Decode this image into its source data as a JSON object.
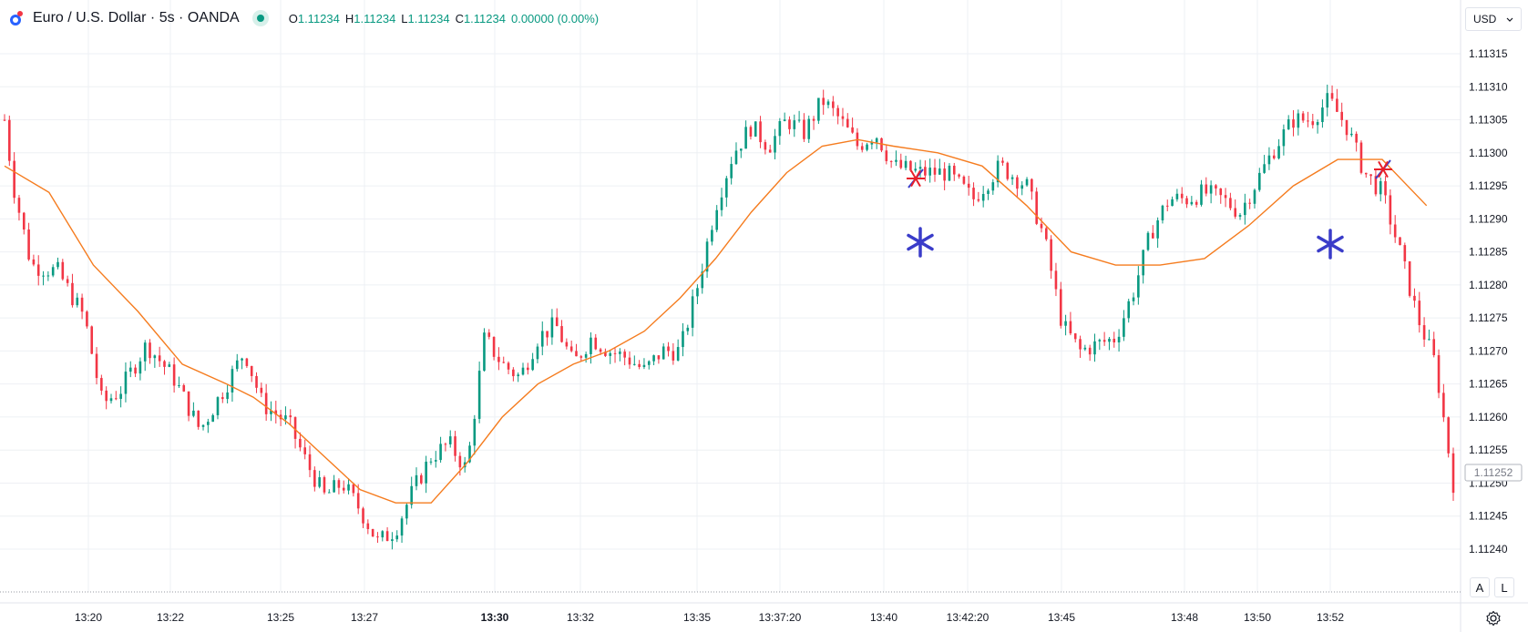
{
  "header": {
    "symbol": "Euro / U.S. Dollar · 5s · OANDA",
    "ohlc": [
      {
        "key": "O",
        "value": "1.11234"
      },
      {
        "key": "H",
        "value": "1.11234"
      },
      {
        "key": "L",
        "value": "1.11234"
      },
      {
        "key": "C",
        "value": "1.11234"
      }
    ],
    "change": "0.00000 (0.00%)"
  },
  "toolbar": {
    "currency": "USD",
    "auto_scale": "A",
    "log_scale": "L"
  },
  "current_price_label": "1.11252",
  "colors": {
    "up": "#089981",
    "down": "#f23645",
    "ma": "#f57c1f",
    "grid": "#eef0f4",
    "marker_blue": "#3a3cc9",
    "marker_red": "#e8202a"
  },
  "icons": [
    "logo-icon",
    "live-status-icon",
    "chevron-down-icon",
    "settings-icon"
  ],
  "chart_data": {
    "type": "candlestick",
    "interval": "5s",
    "y_ticks": [
      "1.11315",
      "1.11310",
      "1.11305",
      "1.11300",
      "1.11295",
      "1.11290",
      "1.11285",
      "1.11280",
      "1.11275",
      "1.11270",
      "1.11265",
      "1.11260",
      "1.11255",
      "1.11250",
      "1.11245",
      "1.11240"
    ],
    "x_ticks": [
      {
        "label": "13:20",
        "bold": false
      },
      {
        "label": "13:22",
        "bold": false
      },
      {
        "label": "13:25",
        "bold": false
      },
      {
        "label": "13:27",
        "bold": false
      },
      {
        "label": "13:30",
        "bold": true
      },
      {
        "label": "13:32",
        "bold": false
      },
      {
        "label": "13:35",
        "bold": false
      },
      {
        "label": "13:37:20",
        "bold": false
      },
      {
        "label": "13:40",
        "bold": false
      },
      {
        "label": "13:42:20",
        "bold": false
      },
      {
        "label": "13:45",
        "bold": false
      },
      {
        "label": "13:48",
        "bold": false
      },
      {
        "label": "13:50",
        "bold": false
      },
      {
        "label": "13:52",
        "bold": false
      }
    ],
    "price_path": [
      [
        0.0,
        1.11305
      ],
      [
        0.01,
        1.11295
      ],
      [
        0.03,
        1.11283
      ],
      [
        0.06,
        1.11282
      ],
      [
        0.09,
        1.11275
      ],
      [
        0.11,
        1.11262
      ],
      [
        0.13,
        1.11264
      ],
      [
        0.16,
        1.11271
      ],
      [
        0.19,
        1.11266
      ],
      [
        0.22,
        1.11258
      ],
      [
        0.25,
        1.11265
      ],
      [
        0.27,
        1.1127
      ],
      [
        0.29,
        1.11262
      ],
      [
        0.32,
        1.11259
      ],
      [
        0.34,
        1.11253
      ],
      [
        0.36,
        1.11248
      ],
      [
        0.38,
        1.1125
      ],
      [
        0.4,
        1.11246
      ],
      [
        0.42,
        1.11241
      ],
      [
        0.44,
        1.11243
      ],
      [
        0.46,
        1.11249
      ],
      [
        0.48,
        1.11254
      ],
      [
        0.5,
        1.11256
      ],
      [
        0.52,
        1.11252
      ],
      [
        0.54,
        1.11272
      ],
      [
        0.56,
        1.11268
      ],
      [
        0.58,
        1.11266
      ],
      [
        0.6,
        1.11272
      ],
      [
        0.62,
        1.11274
      ],
      [
        0.64,
        1.11268
      ],
      [
        0.66,
        1.11272
      ],
      [
        0.68,
        1.1127
      ],
      [
        0.7,
        1.11269
      ],
      [
        0.72,
        1.11267
      ],
      [
        0.74,
        1.1127
      ],
      [
        0.76,
        1.1127
      ],
      [
        0.78,
        1.1128
      ],
      [
        0.8,
        1.11292
      ],
      [
        0.82,
        1.113
      ],
      [
        0.84,
        1.11304
      ],
      [
        0.86,
        1.11301
      ],
      [
        0.88,
        1.11305
      ],
      [
        0.9,
        1.11303
      ],
      [
        0.92,
        1.11308
      ],
      [
        0.94,
        1.11305
      ],
      [
        0.96,
        1.11301
      ],
      [
        0.98,
        1.11303
      ],
      [
        1.0,
        1.11298
      ],
      [
        1.03,
        1.11297
      ],
      [
        1.06,
        1.11297
      ],
      [
        1.09,
        1.11293
      ],
      [
        1.12,
        1.11298
      ],
      [
        1.15,
        1.11295
      ],
      [
        1.17,
        1.11287
      ],
      [
        1.19,
        1.11274
      ],
      [
        1.21,
        1.1127
      ],
      [
        1.23,
        1.11271
      ],
      [
        1.25,
        1.11272
      ],
      [
        1.27,
        1.11279
      ],
      [
        1.29,
        1.11288
      ],
      [
        1.31,
        1.11293
      ],
      [
        1.33,
        1.11293
      ],
      [
        1.35,
        1.11294
      ],
      [
        1.37,
        1.11293
      ],
      [
        1.39,
        1.11291
      ],
      [
        1.41,
        1.11296
      ],
      [
        1.43,
        1.11301
      ],
      [
        1.45,
        1.11305
      ],
      [
        1.47,
        1.11305
      ],
      [
        1.49,
        1.11308
      ],
      [
        1.51,
        1.11304
      ],
      [
        1.53,
        1.11297
      ],
      [
        1.55,
        1.11294
      ],
      [
        1.57,
        1.11285
      ],
      [
        1.59,
        1.11275
      ],
      [
        1.61,
        1.11268
      ],
      [
        1.62,
        1.11259
      ],
      [
        1.63,
        1.1125
      ]
    ],
    "ma_path": [
      [
        0.0,
        1.11298
      ],
      [
        0.05,
        1.11294
      ],
      [
        0.1,
        1.11283
      ],
      [
        0.15,
        1.11276
      ],
      [
        0.2,
        1.11268
      ],
      [
        0.25,
        1.11265
      ],
      [
        0.28,
        1.11263
      ],
      [
        0.32,
        1.11259
      ],
      [
        0.36,
        1.11254
      ],
      [
        0.4,
        1.11249
      ],
      [
        0.44,
        1.11247
      ],
      [
        0.48,
        1.11247
      ],
      [
        0.52,
        1.11253
      ],
      [
        0.56,
        1.1126
      ],
      [
        0.6,
        1.11265
      ],
      [
        0.64,
        1.11268
      ],
      [
        0.68,
        1.1127
      ],
      [
        0.72,
        1.11273
      ],
      [
        0.76,
        1.11278
      ],
      [
        0.8,
        1.11284
      ],
      [
        0.84,
        1.11291
      ],
      [
        0.88,
        1.11297
      ],
      [
        0.92,
        1.11301
      ],
      [
        0.96,
        1.11302
      ],
      [
        1.0,
        1.11301
      ],
      [
        1.05,
        1.113
      ],
      [
        1.1,
        1.11298
      ],
      [
        1.15,
        1.11292
      ],
      [
        1.2,
        1.11285
      ],
      [
        1.25,
        1.11283
      ],
      [
        1.3,
        1.11283
      ],
      [
        1.35,
        1.11284
      ],
      [
        1.4,
        1.11289
      ],
      [
        1.45,
        1.11295
      ],
      [
        1.5,
        1.11299
      ],
      [
        1.55,
        1.11299
      ],
      [
        1.6,
        1.11292
      ]
    ]
  }
}
